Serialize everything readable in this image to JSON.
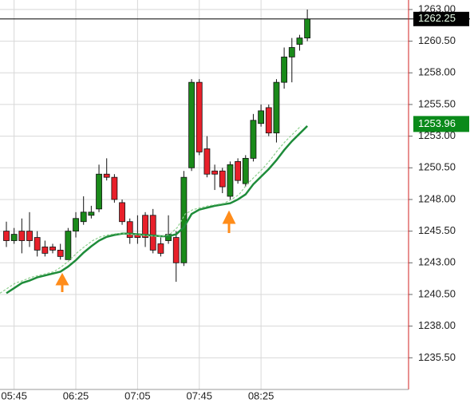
{
  "chart_data": {
    "type": "candlestick",
    "categories": [
      null,
      "05:45",
      null,
      null,
      null,
      null,
      null,
      null,
      null,
      "06:25",
      null,
      null,
      null,
      null,
      null,
      null,
      null,
      "07:05",
      null,
      null,
      null,
      null,
      null,
      null,
      null,
      "07:45",
      null,
      null,
      null,
      null,
      null,
      null,
      null,
      "08:25",
      null,
      null,
      null,
      null,
      null,
      null
    ],
    "open": [
      1245.5,
      1244.75,
      1245.5,
      1245.5,
      1245,
      1244.25,
      1244.25,
      1244,
      1243.25,
      1245.5,
      1246.25,
      1246.75,
      1247.25,
      1250,
      1249.75,
      1247.75,
      1246.25,
      1245.25,
      1246.75,
      1246.75,
      1244.5,
      1244.75,
      1245,
      1243,
      1250.5,
      1257.25,
      1252,
      1250.25,
      1250.25,
      1248.25,
      1251,
      1249.25,
      1251.25,
      1254,
      1255.25,
      1253.25,
      1257.25,
      1259.25,
      1260.25,
      1260.75
    ],
    "high": [
      1246.25,
      1245.75,
      1246.5,
      1247,
      1245.5,
      1244.75,
      1244.5,
      1244.5,
      1245.75,
      1247,
      1248.25,
      1247.5,
      1250.75,
      1251.25,
      1250,
      1248,
      1246.5,
      1246.75,
      1247,
      1247.25,
      1245,
      1246.75,
      1245.5,
      1250.25,
      1257.5,
      1257.5,
      1253,
      1250.75,
      1250.5,
      1251,
      1251.25,
      1251.5,
      1254.75,
      1255.5,
      1255.5,
      1257.5,
      1260,
      1260.75,
      1261,
      1263
    ],
    "low": [
      1244.25,
      1244.5,
      1243.75,
      1244.25,
      1243.5,
      1243.5,
      1243.75,
      1243.25,
      1243.25,
      1245,
      1246,
      1246.5,
      1247,
      1249.5,
      1247.75,
      1246,
      1244.5,
      1244.5,
      1244.25,
      1243.75,
      1243.5,
      1244.5,
      1241.5,
      1242.75,
      1250.25,
      1251.5,
      1249.75,
      1248.75,
      1248.5,
      1248,
      1249.25,
      1249,
      1251,
      1253.75,
      1253,
      1252.5,
      1256.75,
      1257.25,
      1259.75,
      1260.5
    ],
    "close": [
      1244.75,
      1245.25,
      1244.75,
      1244.75,
      1244,
      1243.75,
      1244,
      1243.5,
      1245.5,
      1246.5,
      1247,
      1247,
      1250,
      1249.75,
      1248,
      1246.25,
      1245,
      1245,
      1245,
      1244,
      1243.75,
      1245.25,
      1243,
      1249.75,
      1257.25,
      1251.75,
      1250,
      1250,
      1249,
      1250.75,
      1249.5,
      1251.25,
      1254.25,
      1255,
      1253.25,
      1257.25,
      1259.25,
      1260,
      1260.75,
      1262.25
    ],
    "up_color": "#1a8a1a",
    "down_color": "#e8202a",
    "series": [
      {
        "color": "#1e8c3a",
        "values": [
          1240.6,
          1241,
          1241.4,
          1241.6,
          1241.85,
          1242,
          1242.15,
          1242.3,
          1242.7,
          1243.2,
          1243.8,
          1244.3,
          1244.75,
          1245.05,
          1245.2,
          1245.3,
          1245.3,
          1245.25,
          1245.2,
          1245.15,
          1245.1,
          1245.1,
          1245.25,
          1245.8,
          1246.85,
          1247.2,
          1247.35,
          1247.5,
          1247.6,
          1247.7,
          1248,
          1248.4,
          1249.2,
          1249.8,
          1250.4,
          1251.1,
          1251.9,
          1252.6,
          1253.2,
          1253.8
        ]
      }
    ],
    "last_price": 1262.25,
    "ma_price": 1253.96,
    "ma_color": "#0a8a1a",
    "ylim": [
      1233,
      1263.75
    ],
    "yticks": [
      {
        "value": 1263,
        "label": "1263.00"
      },
      {
        "value": 1260.5,
        "label": "1260.50"
      },
      {
        "value": 1258,
        "label": "1258.00"
      },
      {
        "value": 1255.5,
        "label": "1255.50"
      },
      {
        "value": 1253,
        "label": "1253.00"
      },
      {
        "value": 1250.5,
        "label": "1250.50"
      },
      {
        "value": 1248,
        "label": "1248.00"
      },
      {
        "value": 1245.5,
        "label": "1245.50"
      },
      {
        "value": 1243,
        "label": "1243.00"
      },
      {
        "value": 1240.5,
        "label": "1240.50"
      },
      {
        "value": 1238,
        "label": "1238.00"
      },
      {
        "value": 1235.5,
        "label": "1235.50"
      }
    ],
    "grid": true
  }
}
